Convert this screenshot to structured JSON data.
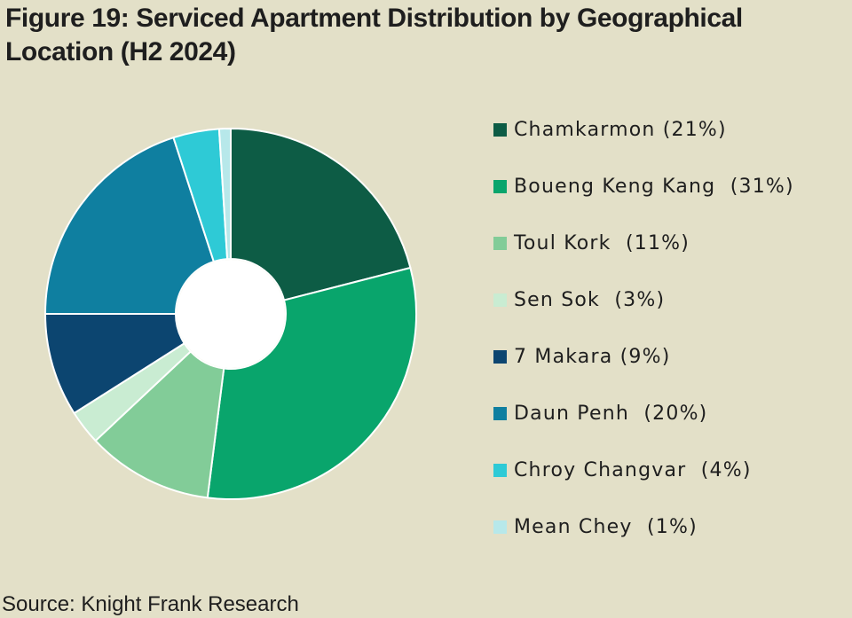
{
  "title": "Figure 19: Serviced Apartment Distribution by Geographical Location (H2 2024)",
  "source": "Source: Knight Frank Research",
  "chart_data": {
    "type": "pie",
    "donut": true,
    "legend_position": "right",
    "slices": [
      {
        "label": "Chamkarmon",
        "legend_text": "Chamkarmon (21%)",
        "value": 21,
        "color": "#0d5c45"
      },
      {
        "label": "Boueng Keng Kang",
        "legend_text": "Boueng Keng Kang  (31%)",
        "value": 31,
        "color": "#09a56c"
      },
      {
        "label": "Toul Kork",
        "legend_text": "Toul Kork  (11%)",
        "value": 11,
        "color": "#82cc98"
      },
      {
        "label": "Sen Sok",
        "legend_text": "Sen Sok  (3%)",
        "value": 3,
        "color": "#c9ecd2"
      },
      {
        "label": "7 Makara",
        "legend_text": "7 Makara (9%)",
        "value": 9,
        "color": "#0c4570"
      },
      {
        "label": "Daun Penh",
        "legend_text": "Daun Penh  (20%)",
        "value": 20,
        "color": "#0f7fa0"
      },
      {
        "label": "Chroy Changvar",
        "legend_text": "Chroy Changvar  (4%)",
        "value": 4,
        "color": "#2ecad6"
      },
      {
        "label": "Mean Chey",
        "legend_text": "Mean Chey  (1%)",
        "value": 1,
        "color": "#b7e8ea"
      }
    ]
  }
}
